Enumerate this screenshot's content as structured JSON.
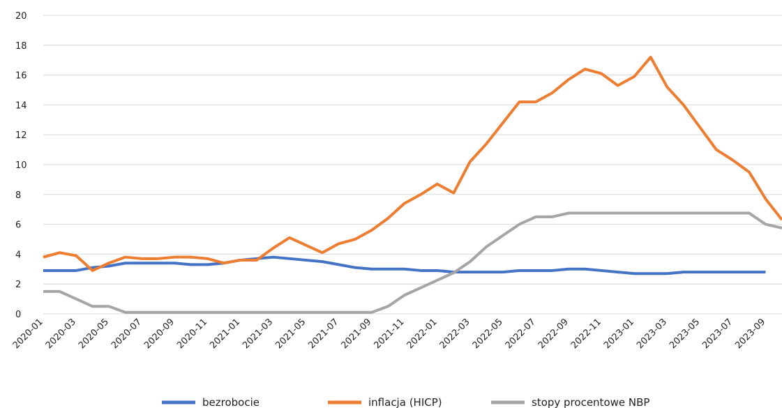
{
  "chart_data": {
    "type": "line",
    "title": "",
    "xlabel": "",
    "ylabel": "",
    "ylim": [
      0,
      20
    ],
    "yticks": [
      "0",
      "2",
      "4",
      "6",
      "8",
      "10",
      "12",
      "14",
      "16",
      "18",
      "20"
    ],
    "grid": true,
    "legend_position": "bottom",
    "x": [
      "2020-01",
      "2020-02",
      "2020-03",
      "2020-04",
      "2020-05",
      "2020-06",
      "2020-07",
      "2020-08",
      "2020-09",
      "2020-10",
      "2020-11",
      "2020-12",
      "2021-01",
      "2021-02",
      "2021-03",
      "2021-04",
      "2021-05",
      "2021-06",
      "2021-07",
      "2021-08",
      "2021-09",
      "2021-10",
      "2021-11",
      "2021-12",
      "2022-01",
      "2022-02",
      "2022-03",
      "2022-04",
      "2022-05",
      "2022-06",
      "2022-07",
      "2022-08",
      "2022-09",
      "2022-10",
      "2022-11",
      "2022-12",
      "2023-01",
      "2023-02",
      "2023-03",
      "2023-04",
      "2023-05",
      "2023-06",
      "2023-07",
      "2023-08",
      "2023-09",
      "2023-10"
    ],
    "xtick_labels": [
      "2020-01",
      "2020-03",
      "2020-05",
      "2020-07",
      "2020-09",
      "2020-11",
      "2021-01",
      "2021-03",
      "2021-05",
      "2021-07",
      "2021-09",
      "2021-11",
      "2022-01",
      "2022-03",
      "2022-05",
      "2022-07",
      "2022-09",
      "2022-11",
      "2023-01",
      "2023-03",
      "2023-05",
      "2023-07",
      "2023-09"
    ],
    "series": [
      {
        "name": "bezrobocie",
        "color": "#4472C4",
        "values": [
          2.9,
          2.9,
          2.9,
          3.1,
          3.2,
          3.4,
          3.4,
          3.4,
          3.4,
          3.3,
          3.3,
          3.4,
          3.6,
          3.7,
          3.8,
          3.7,
          3.6,
          3.5,
          3.3,
          3.1,
          3.0,
          3.0,
          3.0,
          2.9,
          2.9,
          2.8,
          2.8,
          2.8,
          2.8,
          2.9,
          2.9,
          2.9,
          3.0,
          3.0,
          2.9,
          2.8,
          2.7,
          2.7,
          2.7,
          2.8,
          2.8,
          2.8,
          2.8,
          2.8,
          2.8,
          null
        ]
      },
      {
        "name": "inflacja (HICP)",
        "color": "#ED7D31",
        "values": [
          3.8,
          4.1,
          3.9,
          2.9,
          3.4,
          3.8,
          3.7,
          3.7,
          3.8,
          3.8,
          3.7,
          3.4,
          3.6,
          3.6,
          4.4,
          5.1,
          4.6,
          4.1,
          4.7,
          5.0,
          5.6,
          6.4,
          7.4,
          8.0,
          8.7,
          8.1,
          10.2,
          11.4,
          12.8,
          14.2,
          14.2,
          14.8,
          15.7,
          16.4,
          16.1,
          15.3,
          15.9,
          17.2,
          15.2,
          14.0,
          12.5,
          11.0,
          10.3,
          9.5,
          7.7,
          6.3
        ]
      },
      {
        "name": "stopy procentowe NBP",
        "color": "#A5A5A5",
        "values": [
          1.5,
          1.5,
          1.0,
          0.5,
          0.5,
          0.1,
          0.1,
          0.1,
          0.1,
          0.1,
          0.1,
          0.1,
          0.1,
          0.1,
          0.1,
          0.1,
          0.1,
          0.1,
          0.1,
          0.1,
          0.1,
          0.5,
          1.25,
          1.75,
          2.25,
          2.75,
          3.5,
          4.5,
          5.25,
          6.0,
          6.5,
          6.5,
          6.75,
          6.75,
          6.75,
          6.75,
          6.75,
          6.75,
          6.75,
          6.75,
          6.75,
          6.75,
          6.75,
          6.75,
          6.0,
          5.75
        ]
      }
    ]
  }
}
